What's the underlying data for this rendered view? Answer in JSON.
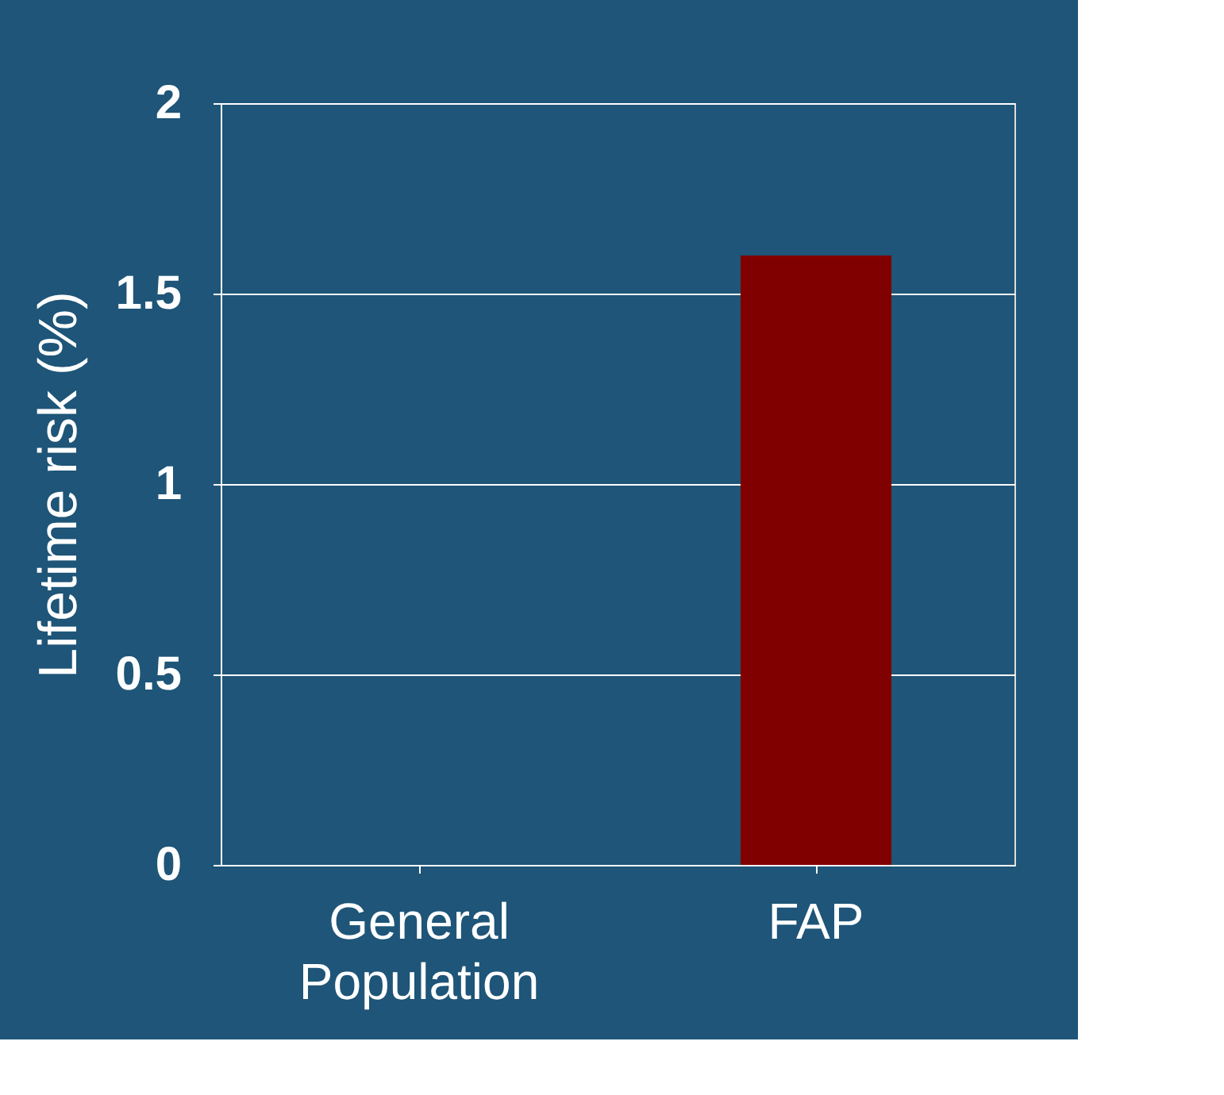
{
  "chart_data": {
    "type": "bar",
    "ylabel": "Lifetime risk (%)",
    "categories": [
      "General Population",
      "FAP"
    ],
    "values": [
      0,
      1.6
    ],
    "color": "#800000",
    "ylim": [
      0,
      2
    ],
    "yticks": [
      0,
      0.5,
      1,
      1.5,
      2
    ],
    "grid": "y"
  }
}
